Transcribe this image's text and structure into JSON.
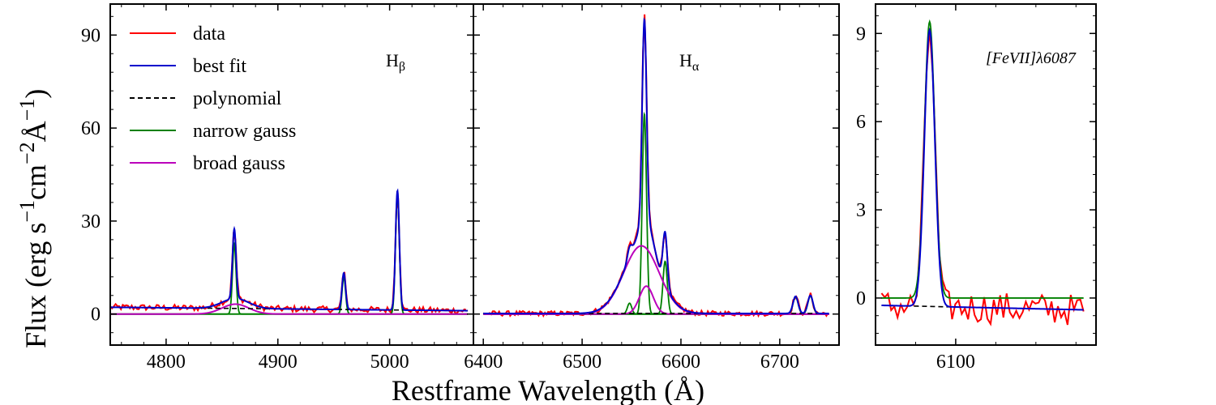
{
  "chart_data": {
    "type": "line",
    "colors": {
      "data": "#ff0000",
      "best_fit": "#0000cc",
      "polynomial": "#000000",
      "narrow_gauss": "#008000",
      "broad_gauss": "#bb00bb"
    },
    "ylabel_main": "Flux (erg s",
    "ylabel_exp1": "−1",
    "ylabel_mid": "cm",
    "ylabel_exp2": "−2",
    "ylabel_unit": "Å",
    "ylabel_exp3": "−1",
    "ylabel_close": ")",
    "xlabel": "Restframe Wavelength (Å)",
    "legend": [
      "data",
      "best fit",
      "polynomial",
      "narrow gauss",
      "broad gauss"
    ],
    "panels": [
      {
        "id": "hbeta",
        "annotation": "H",
        "annotation_sub": "β",
        "xlim": [
          4750,
          5075
        ],
        "ylim": [
          -10,
          100
        ],
        "xticks": [
          4800,
          4900,
          5000
        ],
        "xtick_labels": [
          "4800",
          "4900",
          "5000"
        ],
        "yticks": [
          0,
          30,
          60,
          90
        ],
        "ytick_labels": [
          "0",
          "30",
          "60",
          "90"
        ],
        "xrange": [
          4750,
          5070
        ],
        "poly": {
          "a": 2.2,
          "b": -0.0035,
          "x0": 4750
        },
        "narrow": [
          [
            4861,
            22.5,
            1.6
          ],
          [
            4959,
            11.8,
            1.6
          ],
          [
            5007,
            38.5,
            1.7
          ]
        ],
        "broad": [
          [
            4862,
            3.2,
            12
          ]
        ],
        "noise": 1.0
      },
      {
        "id": "halpha",
        "annotation": "H",
        "annotation_sub": "α",
        "xlim": [
          6390,
          6760
        ],
        "ylim": [
          -10,
          100
        ],
        "xticks": [
          6400,
          6500,
          6600,
          6700
        ],
        "xtick_labels": [
          "6400",
          "6500",
          "6600",
          "6700"
        ],
        "yticks": [],
        "ytick_labels": [],
        "xrange": [
          6400,
          6750
        ],
        "poly": {
          "a": 0.2,
          "b": 0.0,
          "x0": 6400
        },
        "narrow": [
          [
            6548,
            3.5,
            2.2
          ],
          [
            6563,
            64.5,
            2.2
          ],
          [
            6584,
            17.0,
            2.2
          ],
          [
            6716,
            5.5,
            2.6
          ],
          [
            6731,
            5.8,
            2.6
          ]
        ],
        "broad": [
          [
            6560,
            22.0,
            18
          ],
          [
            6565,
            9.0,
            7
          ]
        ],
        "noise": 0.8
      },
      {
        "id": "fevii",
        "annotation": "[FeVII]λ6087",
        "annotation_sub": "",
        "xlim": [
          6060,
          6170
        ],
        "ylim": [
          -1.6,
          10.0
        ],
        "xticks": [
          6100
        ],
        "xtick_labels": [
          "6100"
        ],
        "yticks": [
          0,
          3,
          6,
          9
        ],
        "ytick_labels": [
          "0",
          "3",
          "6",
          "9"
        ],
        "xrange": [
          6063,
          6164
        ],
        "poly": {
          "a": -0.25,
          "b": -0.0015,
          "x0": 6063
        },
        "narrow": [
          [
            6087,
            9.4,
            2.6
          ]
        ],
        "broad": [],
        "noise": 0.55,
        "narrow_baseline": 0.0
      }
    ]
  }
}
